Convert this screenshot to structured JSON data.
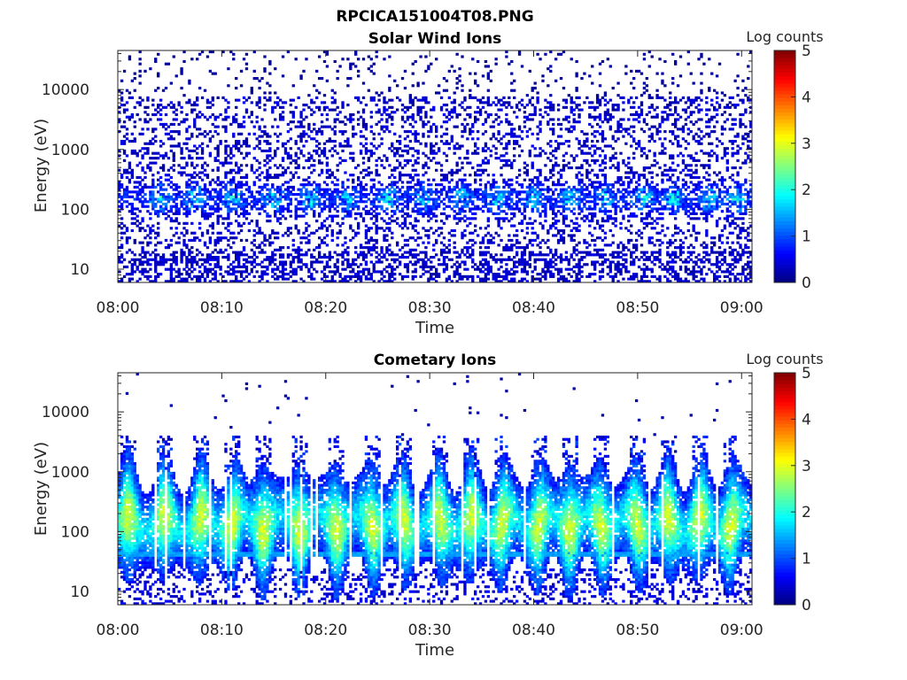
{
  "figure": {
    "title": "RPCICA151004T08.PNG"
  },
  "chart_data": [
    {
      "type": "heatmap",
      "title": "Solar Wind Ions",
      "xlabel": "Time",
      "ylabel": "Energy (eV)",
      "x_ticks": [
        "08:00",
        "08:10",
        "08:20",
        "08:30",
        "08:40",
        "08:50",
        "09:00"
      ],
      "x_range": [
        "08:00",
        "09:01"
      ],
      "y_scale": "log",
      "y_ticks": [
        10,
        100,
        1000,
        10000
      ],
      "y_tick_labels": [
        "10",
        "100",
        "1000",
        "10000"
      ],
      "y_range": [
        6,
        45000
      ],
      "colorbar": {
        "label": "Log counts",
        "range": [
          0,
          5
        ],
        "ticks": [
          "0",
          "1",
          "2",
          "3",
          "4",
          "5"
        ],
        "colormap": "jet"
      },
      "band_centers_eV": 150,
      "band_peak_log_counts": 2.2,
      "pulse_times_min": [
        4,
        7.5,
        11,
        15,
        18.5,
        22,
        26,
        29.5,
        33,
        36.5,
        40,
        43.5,
        47,
        50.5,
        53.5,
        57,
        59.5
      ],
      "description_of_signal": "sparse low counts (0-1) across 6-30000 eV with enhanced bursts near 100-300 eV"
    },
    {
      "type": "heatmap",
      "title": "Cometary Ions",
      "xlabel": "Time",
      "ylabel": "Energy (eV)",
      "x_ticks": [
        "08:00",
        "08:10",
        "08:20",
        "08:30",
        "08:40",
        "08:50",
        "09:00"
      ],
      "x_range": [
        "08:00",
        "09:01"
      ],
      "y_scale": "log",
      "y_ticks": [
        10,
        100,
        1000,
        10000
      ],
      "y_tick_labels": [
        "10",
        "100",
        "1000",
        "10000"
      ],
      "y_range": [
        6,
        45000
      ],
      "colorbar": {
        "label": "Log counts",
        "range": [
          0,
          5
        ],
        "ticks": [
          "0",
          "1",
          "2",
          "3",
          "4",
          "5"
        ],
        "colormap": "jet"
      },
      "band_center_eV": 140,
      "band_peak_log_counts": 2.8,
      "line_feature_eV": 42,
      "pulse_times_min": [
        1,
        4.5,
        8,
        11,
        14,
        17.5,
        21,
        24.5,
        27.5,
        31,
        34,
        37,
        40.5,
        43.5,
        46.5,
        50,
        53,
        56,
        59
      ]
    }
  ]
}
